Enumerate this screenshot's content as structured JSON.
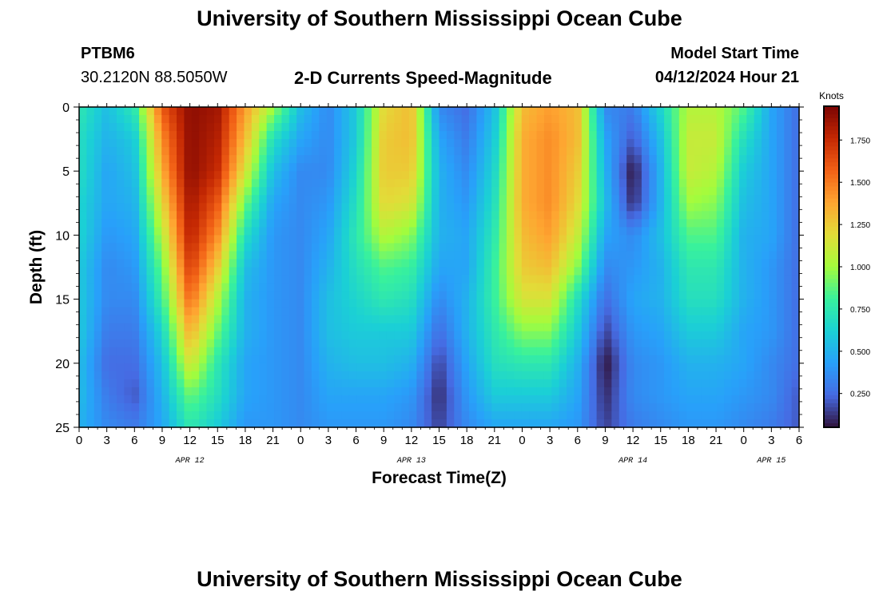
{
  "header": {
    "title": "University of Southern Mississippi Ocean Cube",
    "station": "PTBM6",
    "coords": "30.2120N  88.5050W",
    "plot_title": "2-D Currents Speed-Magnitude",
    "model_label": "Model Start Time",
    "model_time": "04/12/2024 Hour 21"
  },
  "footer": {
    "title": "University of Southern Mississippi Ocean Cube"
  },
  "colors": {
    "low": "#30123b",
    "mid": "#a4fc3c",
    "high": "#7a0403"
  },
  "chart_data": {
    "type": "heatmap",
    "title": "2-D Currents Speed-Magnitude",
    "xlabel": "Forecast Time(Z)",
    "ylabel": "Depth (ft)",
    "x_unit": "hours since APR 12 00Z",
    "xlim": [
      0,
      78
    ],
    "ylim": [
      25,
      0
    ],
    "x_ticks": [
      0,
      3,
      6,
      9,
      12,
      15,
      18,
      21,
      24,
      27,
      30,
      33,
      36,
      39,
      42,
      45,
      48,
      51,
      54,
      57,
      60,
      63,
      66,
      69,
      72,
      75,
      78
    ],
    "x_tick_labels": [
      "0",
      "3",
      "6",
      "9",
      "12",
      "15",
      "18",
      "21",
      "0",
      "3",
      "6",
      "9",
      "12",
      "15",
      "18",
      "21",
      "0",
      "3",
      "6",
      "9",
      "12",
      "15",
      "18",
      "21",
      "0",
      "3",
      "6"
    ],
    "y_ticks": [
      0,
      5,
      10,
      15,
      20,
      25
    ],
    "y_tick_labels": [
      "0",
      "5",
      "10",
      "15",
      "20",
      "25"
    ],
    "date_labels": [
      {
        "label": "APR 12",
        "x": 12
      },
      {
        "label": "APR 13",
        "x": 36
      },
      {
        "label": "APR 14",
        "x": 60
      },
      {
        "label": "APR 15",
        "x": 75
      }
    ],
    "colorbar": {
      "label": "Knots",
      "range": [
        0.05,
        1.95
      ],
      "ticks": [
        0.25,
        0.5,
        0.75,
        1.0,
        1.25,
        1.5,
        1.75
      ],
      "tick_labels": [
        "0.250",
        "0.500",
        "0.750",
        "1.000",
        "1.250",
        "1.500",
        "1.750"
      ]
    },
    "depths_ft": [
      0,
      2.5,
      5,
      7.5,
      10,
      12.5,
      15,
      17.5,
      20,
      22.5,
      25
    ],
    "times_hr": [
      0,
      3,
      6,
      9,
      12,
      15,
      18,
      21,
      24,
      27,
      30,
      33,
      36,
      39,
      42,
      45,
      48,
      51,
      54,
      57,
      60,
      63,
      66,
      69,
      72,
      75,
      78
    ],
    "speed_knots": [
      [
        0.75,
        0.55,
        0.75,
        1.6,
        1.9,
        1.85,
        1.4,
        1.0,
        0.55,
        0.35,
        0.6,
        1.2,
        1.3,
        0.35,
        0.25,
        0.55,
        1.3,
        1.4,
        1.3,
        0.35,
        0.3,
        0.65,
        1.05,
        1.05,
        0.85,
        0.45,
        0.25
      ],
      [
        0.7,
        0.5,
        0.6,
        1.45,
        1.9,
        1.8,
        1.3,
        0.7,
        0.45,
        0.35,
        0.6,
        1.25,
        1.3,
        0.45,
        0.3,
        0.6,
        1.35,
        1.45,
        1.3,
        0.45,
        0.2,
        0.55,
        1.1,
        1.1,
        0.7,
        0.45,
        0.25
      ],
      [
        0.7,
        0.45,
        0.55,
        1.35,
        1.9,
        1.75,
        1.15,
        0.55,
        0.35,
        0.35,
        0.65,
        1.25,
        1.25,
        0.5,
        0.35,
        0.65,
        1.35,
        1.45,
        1.25,
        0.5,
        0.05,
        0.5,
        1.1,
        1.05,
        0.6,
        0.45,
        0.25
      ],
      [
        0.65,
        0.45,
        0.5,
        1.2,
        1.85,
        1.6,
        0.9,
        0.45,
        0.35,
        0.4,
        0.7,
        1.2,
        1.15,
        0.5,
        0.4,
        0.7,
        1.35,
        1.45,
        1.2,
        0.55,
        0.1,
        0.5,
        1.0,
        0.95,
        0.55,
        0.45,
        0.25
      ],
      [
        0.65,
        0.4,
        0.45,
        1.05,
        1.8,
        1.45,
        0.7,
        0.4,
        0.35,
        0.45,
        0.75,
        1.05,
        0.95,
        0.5,
        0.45,
        0.75,
        1.3,
        1.4,
        1.1,
        0.45,
        0.35,
        0.55,
        0.85,
        0.85,
        0.5,
        0.45,
        0.25
      ],
      [
        0.6,
        0.35,
        0.4,
        0.9,
        1.7,
        1.25,
        0.55,
        0.4,
        0.35,
        0.5,
        0.7,
        0.85,
        0.8,
        0.45,
        0.45,
        0.8,
        1.25,
        1.3,
        0.95,
        0.35,
        0.4,
        0.5,
        0.75,
        0.75,
        0.5,
        0.4,
        0.25
      ],
      [
        0.6,
        0.35,
        0.35,
        0.8,
        1.55,
        1.05,
        0.5,
        0.4,
        0.35,
        0.55,
        0.65,
        0.75,
        0.7,
        0.35,
        0.5,
        0.8,
        1.15,
        1.15,
        0.7,
        0.25,
        0.45,
        0.5,
        0.7,
        0.7,
        0.5,
        0.4,
        0.25
      ],
      [
        0.6,
        0.3,
        0.3,
        0.65,
        1.35,
        0.9,
        0.5,
        0.4,
        0.35,
        0.55,
        0.6,
        0.6,
        0.6,
        0.25,
        0.5,
        0.75,
        0.95,
        0.95,
        0.6,
        0.15,
        0.4,
        0.45,
        0.6,
        0.6,
        0.45,
        0.4,
        0.25
      ],
      [
        0.55,
        0.25,
        0.25,
        0.55,
        1.15,
        0.75,
        0.45,
        0.4,
        0.35,
        0.5,
        0.55,
        0.55,
        0.5,
        0.15,
        0.45,
        0.7,
        0.75,
        0.75,
        0.5,
        0.05,
        0.35,
        0.4,
        0.5,
        0.5,
        0.45,
        0.35,
        0.25
      ],
      [
        0.55,
        0.3,
        0.2,
        0.5,
        0.9,
        0.7,
        0.45,
        0.4,
        0.35,
        0.45,
        0.45,
        0.45,
        0.4,
        0.1,
        0.4,
        0.6,
        0.6,
        0.6,
        0.45,
        0.1,
        0.35,
        0.4,
        0.45,
        0.45,
        0.4,
        0.35,
        0.2
      ],
      [
        0.5,
        0.35,
        0.3,
        0.45,
        0.75,
        0.6,
        0.4,
        0.4,
        0.35,
        0.4,
        0.4,
        0.4,
        0.35,
        0.15,
        0.35,
        0.45,
        0.45,
        0.45,
        0.4,
        0.15,
        0.3,
        0.35,
        0.4,
        0.4,
        0.35,
        0.3,
        0.2
      ]
    ]
  }
}
